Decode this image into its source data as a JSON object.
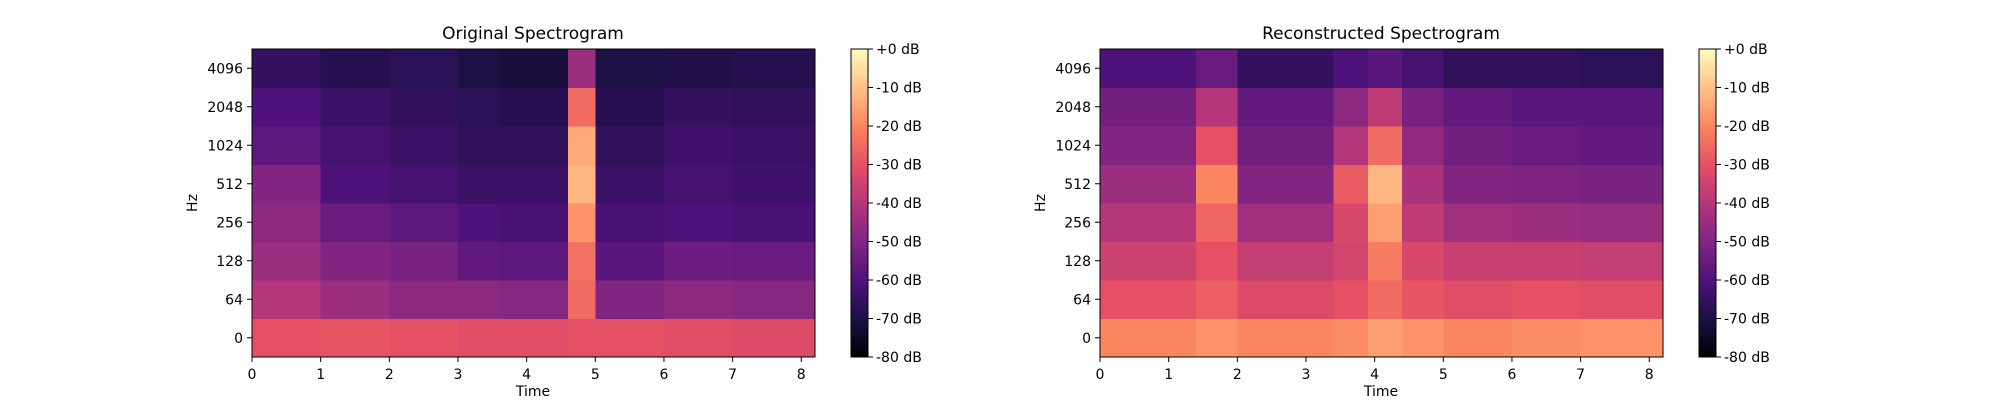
{
  "colormap": [
    "#000004",
    "#1c1044",
    "#4f127b",
    "#812581",
    "#b5367a",
    "#e55064",
    "#fb8761",
    "#fec287",
    "#fcfdbf"
  ],
  "chart_data": [
    {
      "type": "heatmap",
      "title": "Original Spectrogram",
      "xlabel": "Time",
      "ylabel": "Hz",
      "xlim": [
        0,
        8.2
      ],
      "x_ticks": [
        "0",
        "1",
        "2",
        "3",
        "4",
        "5",
        "6",
        "7",
        "8"
      ],
      "y_ticks": [
        "0",
        "64",
        "128",
        "256",
        "512",
        "1024",
        "2048",
        "4096"
      ],
      "color_range_db": [
        -80,
        0
      ],
      "colorbar_ticks": [
        "+0 dB",
        "-10 dB",
        "-20 dB",
        "-30 dB",
        "-40 dB",
        "-50 dB",
        "-60 dB",
        "-70 dB",
        "-80 dB"
      ],
      "time_segments_s": [
        0,
        1,
        2,
        3,
        3.6,
        4.6,
        5,
        6,
        7,
        8.2
      ],
      "freq_bands": [
        "0",
        "64",
        "128",
        "256",
        "512",
        "1024",
        "2048",
        "4096",
        "8192"
      ],
      "level_db": [
        [
          -30,
          -29,
          -30,
          -31,
          -31,
          -30,
          -30,
          -31,
          -32,
          -29
        ],
        [
          -40,
          -45,
          -48,
          -48,
          -49,
          -25,
          -50,
          -48,
          -49,
          -49
        ],
        [
          -45,
          -50,
          -52,
          -56,
          -57,
          -24,
          -58,
          -54,
          -55,
          -57
        ],
        [
          -48,
          -55,
          -57,
          -60,
          -61,
          -18,
          -61,
          -60,
          -61,
          -62
        ],
        [
          -50,
          -60,
          -62,
          -64,
          -64,
          -12,
          -64,
          -62,
          -63,
          -64
        ],
        [
          -57,
          -62,
          -64,
          -66,
          -66,
          -14,
          -66,
          -63,
          -64,
          -66
        ],
        [
          -60,
          -64,
          -66,
          -67,
          -68,
          -25,
          -68,
          -65,
          -66,
          -68
        ],
        [
          -65,
          -68,
          -67,
          -70,
          -71,
          -45,
          -70,
          -69,
          -68,
          -70
        ]
      ]
    },
    {
      "type": "heatmap",
      "title": "Reconstructed Spectrogram",
      "xlabel": "Time",
      "ylabel": "Hz",
      "xlim": [
        0,
        8.2
      ],
      "x_ticks": [
        "0",
        "1",
        "2",
        "3",
        "4",
        "5",
        "6",
        "7",
        "8"
      ],
      "y_ticks": [
        "0",
        "64",
        "128",
        "256",
        "512",
        "1024",
        "2048",
        "4096"
      ],
      "color_range_db": [
        -80,
        0
      ],
      "colorbar_ticks": [
        "+0 dB",
        "-10 dB",
        "-20 dB",
        "-30 dB",
        "-40 dB",
        "-50 dB",
        "-60 dB",
        "-70 dB",
        "-80 dB"
      ],
      "time_segments_s": [
        0,
        1.4,
        2,
        3.4,
        3.9,
        4.4,
        5,
        6,
        7,
        8.2
      ],
      "freq_bands": [
        "0",
        "64",
        "128",
        "256",
        "512",
        "1024",
        "2048",
        "4096",
        "8192"
      ],
      "level_db": [
        [
          -20,
          -18,
          -20,
          -19,
          -16,
          -18,
          -20,
          -19,
          -18,
          -20
        ],
        [
          -30,
          -27,
          -32,
          -30,
          -25,
          -29,
          -31,
          -30,
          -31,
          -31
        ],
        [
          -35,
          -30,
          -37,
          -34,
          -22,
          -33,
          -36,
          -36,
          -37,
          -37
        ],
        [
          -40,
          -26,
          -44,
          -33,
          -16,
          -38,
          -44,
          -45,
          -46,
          -46
        ],
        [
          -45,
          -20,
          -50,
          -28,
          -12,
          -42,
          -50,
          -51,
          -52,
          -52
        ],
        [
          -50,
          -30,
          -53,
          -40,
          -25,
          -47,
          -53,
          -55,
          -56,
          -56
        ],
        [
          -53,
          -40,
          -56,
          -48,
          -38,
          -52,
          -56,
          -58,
          -58,
          -58
        ],
        [
          -60,
          -55,
          -65,
          -60,
          -58,
          -62,
          -66,
          -66,
          -67,
          -67
        ]
      ]
    }
  ]
}
